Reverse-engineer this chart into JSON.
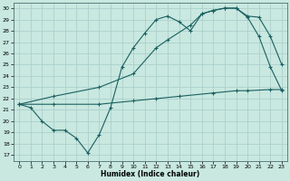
{
  "xlabel": "Humidex (Indice chaleur)",
  "bg_color": "#c8e8e0",
  "grid_color": "#a8ccc8",
  "line_color": "#1a6060",
  "xlim": [
    -0.5,
    23.5
  ],
  "ylim": [
    16.5,
    30.5
  ],
  "yticks": [
    17,
    18,
    19,
    20,
    21,
    22,
    23,
    24,
    25,
    26,
    27,
    28,
    29,
    30
  ],
  "xticks": [
    0,
    1,
    2,
    3,
    4,
    5,
    6,
    7,
    8,
    9,
    10,
    11,
    12,
    13,
    14,
    15,
    16,
    17,
    18,
    19,
    20,
    21,
    22,
    23
  ],
  "line1_x": [
    0,
    1,
    2,
    3,
    4,
    5,
    6,
    7,
    8,
    9,
    10,
    11,
    12,
    13,
    14,
    15,
    16,
    17,
    18,
    19,
    20,
    21,
    22,
    23
  ],
  "line1_y": [
    21.5,
    21.2,
    20.0,
    19.2,
    19.2,
    18.5,
    17.2,
    18.8,
    21.2,
    24.8,
    26.5,
    27.8,
    29.0,
    29.3,
    28.8,
    28.0,
    29.5,
    29.8,
    30.0,
    30.0,
    29.2,
    27.5,
    24.8,
    22.7
  ],
  "line2_x": [
    0,
    3,
    7,
    10,
    12,
    13,
    15,
    16,
    17,
    18,
    19,
    20,
    21,
    22,
    23
  ],
  "line2_y": [
    21.5,
    22.2,
    23.0,
    24.2,
    26.5,
    27.2,
    28.5,
    29.5,
    29.8,
    30.0,
    30.0,
    29.3,
    29.2,
    27.5,
    25.0
  ],
  "line3_x": [
    0,
    3,
    7,
    10,
    12,
    14,
    17,
    19,
    20,
    22,
    23
  ],
  "line3_y": [
    21.5,
    21.5,
    21.5,
    21.8,
    22.0,
    22.2,
    22.5,
    22.7,
    22.7,
    22.8,
    22.8
  ]
}
